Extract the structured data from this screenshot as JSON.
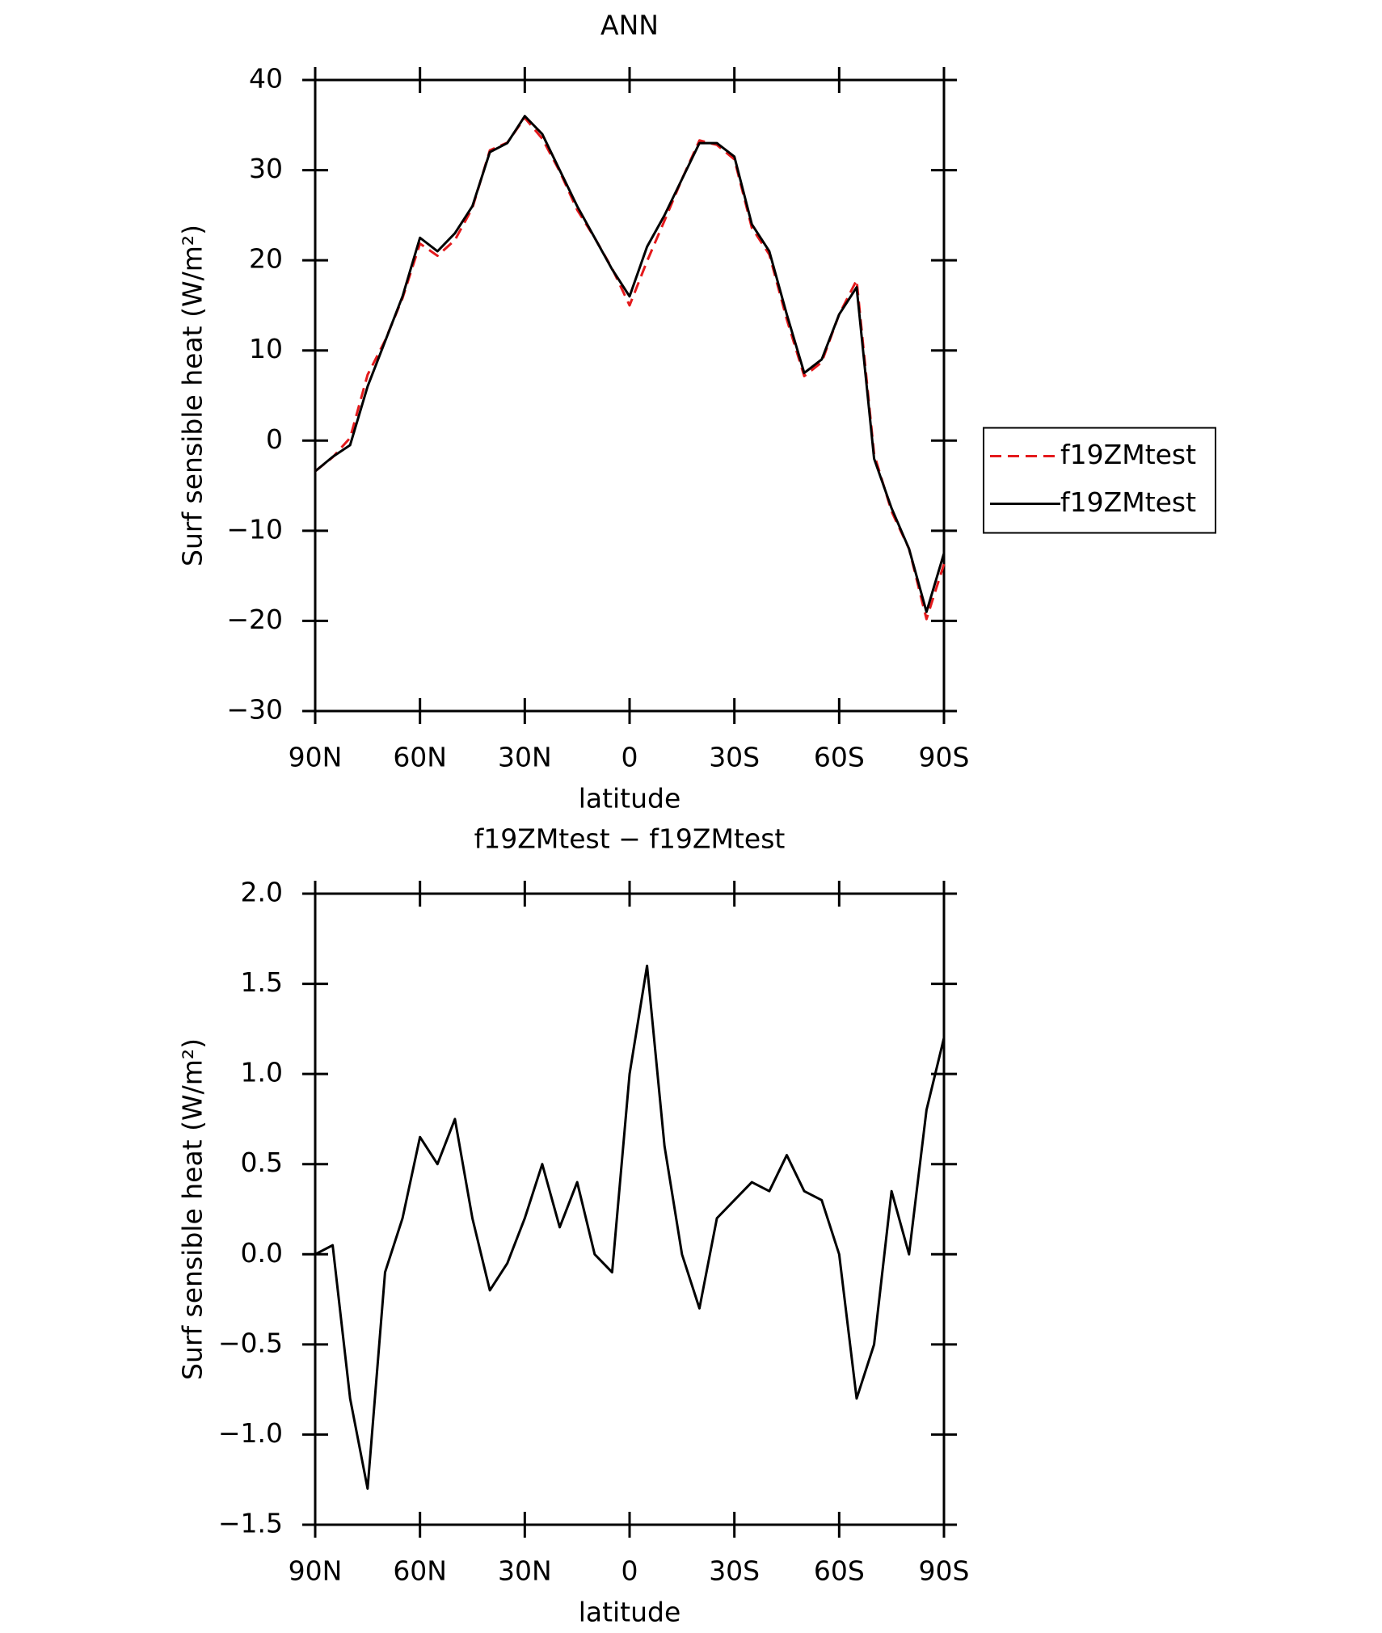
{
  "chart_data": [
    {
      "type": "line",
      "title": "ANN",
      "x_label": "latitude",
      "y_label": "Surf sensible heat (W/m²)",
      "x": [
        90,
        85,
        80,
        75,
        70,
        65,
        60,
        55,
        50,
        45,
        40,
        35,
        30,
        25,
        20,
        15,
        10,
        5,
        0,
        -5,
        -10,
        -15,
        -20,
        -25,
        -30,
        -35,
        -40,
        -45,
        -50,
        -55,
        -60,
        -65,
        -70,
        -75,
        -80,
        -85,
        -90
      ],
      "xlim": [
        90,
        -90
      ],
      "xticks": [
        {
          "value": 90,
          "label": "90N"
        },
        {
          "value": 60,
          "label": "60N"
        },
        {
          "value": 30,
          "label": "30N"
        },
        0,
        {
          "value": -30,
          "label": "30S"
        },
        {
          "value": -60,
          "label": "60S"
        },
        {
          "value": -90,
          "label": "90S"
        }
      ],
      "ylim": [
        -30,
        40
      ],
      "yticks": [
        {
          "value": -30,
          "label": "−30"
        },
        {
          "value": -20,
          "label": "−20"
        },
        {
          "value": -10,
          "label": "−10"
        },
        0,
        10,
        20,
        30,
        40
      ],
      "legend": "right",
      "series": [
        {
          "name": "f19ZMtest",
          "color": "#e41a1c",
          "dash": true,
          "values": [
            -3.4,
            -1.85,
            0.3,
            7.3,
            11.1,
            15.8,
            21.85,
            20.5,
            22.25,
            25.8,
            32.2,
            33.05,
            35.8,
            33.5,
            29.85,
            25.6,
            22.5,
            19.1,
            15,
            19.9,
            24.4,
            29,
            33.3,
            32.8,
            31.2,
            23.6,
            20.65,
            13.45,
            7.15,
            8.7,
            14,
            17.8,
            -1.5,
            -7.85,
            -12,
            -19.8,
            -13.7
          ]
        },
        {
          "name": "f19ZMtest",
          "color": "#000000",
          "dash": false,
          "values": [
            -3.4,
            -1.8,
            -0.5,
            6,
            11,
            16,
            22.5,
            21,
            23,
            26,
            32,
            33,
            36,
            34,
            30,
            26,
            22.5,
            19,
            16,
            21.5,
            25,
            29,
            33,
            33,
            31.5,
            24,
            21,
            14,
            7.5,
            9,
            14,
            17,
            -2,
            -7.5,
            -12,
            -19,
            -12.5
          ]
        }
      ]
    },
    {
      "type": "line",
      "title": "f19ZMtest − f19ZMtest",
      "x_label": "latitude",
      "y_label": "Surf sensible heat (W/m²)",
      "x": [
        90,
        85,
        80,
        75,
        70,
        65,
        60,
        55,
        50,
        45,
        40,
        35,
        30,
        25,
        20,
        15,
        10,
        5,
        0,
        -5,
        -10,
        -15,
        -20,
        -25,
        -30,
        -35,
        -40,
        -45,
        -50,
        -55,
        -60,
        -65,
        -70,
        -75,
        -80,
        -85,
        -90
      ],
      "xlim": [
        90,
        -90
      ],
      "xticks": [
        {
          "value": 90,
          "label": "90N"
        },
        {
          "value": 60,
          "label": "60N"
        },
        {
          "value": 30,
          "label": "30N"
        },
        0,
        {
          "value": -30,
          "label": "30S"
        },
        {
          "value": -60,
          "label": "60S"
        },
        {
          "value": -90,
          "label": "90S"
        }
      ],
      "ylim": [
        -1.5,
        2.0
      ],
      "yticks": [
        {
          "value": -1.5,
          "label": "−1.5"
        },
        {
          "value": -1.0,
          "label": "−1.0"
        },
        {
          "value": -0.5,
          "label": "−0.5"
        },
        {
          "value": 0,
          "label": "0.0"
        },
        0.5,
        {
          "value": 1.0,
          "label": "1.0"
        },
        1.5,
        {
          "value": 2.0,
          "label": "2.0"
        }
      ],
      "series": [
        {
          "color": "#000000",
          "values": [
            0,
            0.05,
            -0.8,
            -1.3,
            -0.1,
            0.2,
            0.65,
            0.5,
            0.75,
            0.2,
            -0.2,
            -0.05,
            0.2,
            0.5,
            0.15,
            0.4,
            0,
            -0.1,
            1,
            1.6,
            0.6,
            0,
            -0.3,
            0.2,
            0.3,
            0.4,
            0.35,
            0.55,
            0.35,
            0.3,
            0,
            -0.8,
            -0.5,
            0.35,
            0,
            0.8,
            1.2
          ]
        }
      ]
    }
  ]
}
